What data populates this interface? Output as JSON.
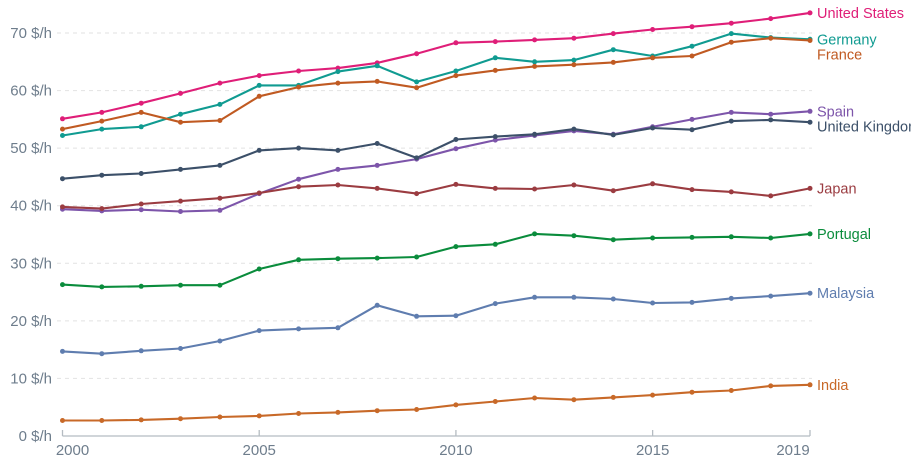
{
  "chart_data": {
    "type": "line",
    "title": "",
    "xlabel": "",
    "ylabel": "",
    "y_unit_suffix": " $/h",
    "ylim": [
      0,
      70
    ],
    "grid": "horizontal-dashed",
    "legend_position": "right-end-direct-labels",
    "x": [
      2000,
      2001,
      2002,
      2003,
      2004,
      2005,
      2006,
      2007,
      2008,
      2009,
      2010,
      2011,
      2012,
      2013,
      2014,
      2015,
      2016,
      2017,
      2018,
      2019
    ],
    "x_ticks": [
      2000,
      2005,
      2010,
      2015,
      2019
    ],
    "x_tick_labels": [
      "2000",
      "2005",
      "2010",
      "2015",
      "2019"
    ],
    "y_ticks": [
      0,
      10,
      20,
      30,
      40,
      50,
      60,
      70
    ],
    "y_tick_labels": [
      "0 $/h",
      "10 $/h",
      "20 $/h",
      "30 $/h",
      "40 $/h",
      "50 $/h",
      "60 $/h",
      "70 $/h"
    ],
    "axis_text_color": "#6e7d8c",
    "axis_line_color": "#b5bcc2",
    "gridline_color": "#e2e2e2",
    "series": [
      {
        "name": "United States",
        "color": "#df1e78",
        "values": [
          55.1,
          56.2,
          57.8,
          59.5,
          61.3,
          62.6,
          63.4,
          63.9,
          64.8,
          66.4,
          68.3,
          68.5,
          68.8,
          69.1,
          69.9,
          70.6,
          71.1,
          71.7,
          72.5,
          73.5
        ]
      },
      {
        "name": "Germany",
        "color": "#109b91",
        "values": [
          52.2,
          53.3,
          53.7,
          55.9,
          57.6,
          60.9,
          60.9,
          63.3,
          64.3,
          61.5,
          63.4,
          65.7,
          65.0,
          65.3,
          67.1,
          66.0,
          67.7,
          69.9,
          69.2,
          68.9
        ]
      },
      {
        "name": "France",
        "color": "#c05a22",
        "values": [
          53.3,
          54.7,
          56.2,
          54.5,
          54.8,
          59.0,
          60.6,
          61.3,
          61.6,
          60.5,
          62.6,
          63.5,
          64.2,
          64.5,
          64.9,
          65.7,
          66.0,
          68.4,
          69.1,
          68.7
        ]
      },
      {
        "name": "Spain",
        "color": "#7d55aa",
        "values": [
          39.4,
          39.1,
          39.3,
          39.0,
          39.2,
          42.1,
          44.6,
          46.3,
          47.0,
          48.1,
          49.9,
          51.4,
          52.2,
          53.0,
          52.4,
          53.7,
          55.0,
          56.2,
          55.9,
          56.4
        ]
      },
      {
        "name": "United Kingdom",
        "color": "#3c5069",
        "values": [
          44.7,
          45.3,
          45.6,
          46.3,
          47.0,
          49.6,
          50.0,
          49.6,
          50.8,
          48.3,
          51.5,
          52.0,
          52.4,
          53.3,
          52.3,
          53.5,
          53.2,
          54.7,
          54.9,
          54.5
        ]
      },
      {
        "name": "Japan",
        "color": "#9b3c41",
        "values": [
          39.8,
          39.5,
          40.3,
          40.8,
          41.3,
          42.2,
          43.3,
          43.6,
          43.0,
          42.1,
          43.7,
          43.0,
          42.9,
          43.6,
          42.6,
          43.8,
          42.8,
          42.4,
          41.7,
          43.0
        ]
      },
      {
        "name": "Portugal",
        "color": "#0a8c3c",
        "values": [
          26.3,
          25.9,
          26.0,
          26.2,
          26.2,
          29.0,
          30.6,
          30.8,
          30.9,
          31.1,
          32.9,
          33.3,
          35.1,
          34.8,
          34.1,
          34.4,
          34.5,
          34.6,
          34.4,
          35.1
        ]
      },
      {
        "name": "Malaysia",
        "color": "#5f7daf",
        "values": [
          14.7,
          14.3,
          14.8,
          15.2,
          16.5,
          18.3,
          18.6,
          18.8,
          22.7,
          20.8,
          20.9,
          23.0,
          24.1,
          24.1,
          23.8,
          23.1,
          23.2,
          23.9,
          24.3,
          24.8
        ]
      },
      {
        "name": "India",
        "color": "#c86928",
        "values": [
          2.7,
          2.7,
          2.8,
          3.0,
          3.3,
          3.5,
          3.9,
          4.1,
          4.4,
          4.6,
          5.4,
          6.0,
          6.6,
          6.3,
          6.7,
          7.1,
          7.6,
          7.9,
          8.7,
          8.9
        ]
      }
    ]
  }
}
